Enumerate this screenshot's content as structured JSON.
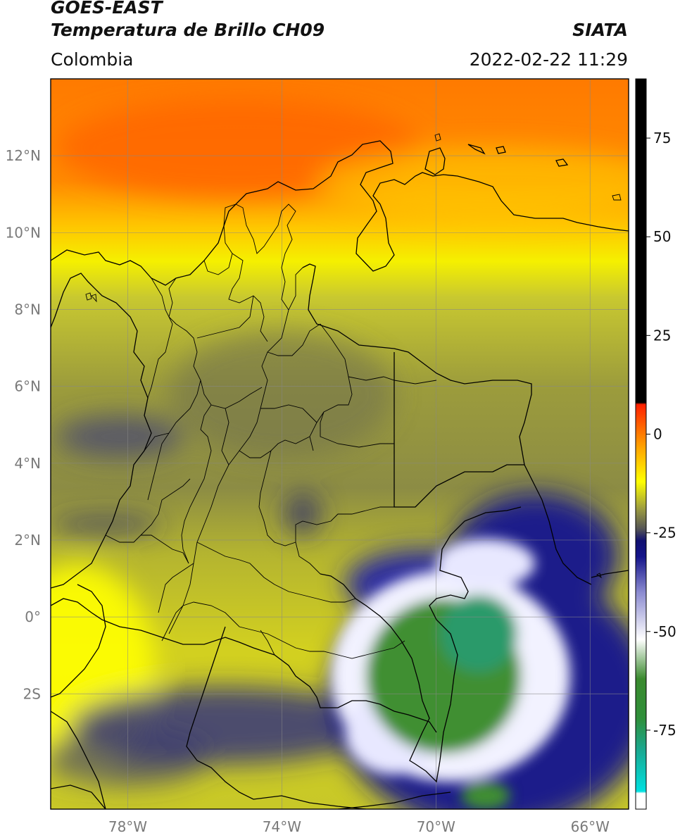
{
  "header": {
    "satellite": "GOES-EAST",
    "product": "Temperatura de Brillo CH09",
    "organization": "SIATA",
    "region": "Colombia",
    "timestamp": "2022-02-22 11:29"
  },
  "map": {
    "lon_range": [
      -80,
      -65
    ],
    "lat_range": [
      -5,
      14
    ],
    "lat_ticks": [
      {
        "value": 12,
        "label": "12°N"
      },
      {
        "value": 10,
        "label": "10°N"
      },
      {
        "value": 8,
        "label": "8°N"
      },
      {
        "value": 6,
        "label": "6°N"
      },
      {
        "value": 4,
        "label": "4°N"
      },
      {
        "value": 2,
        "label": "2°N"
      },
      {
        "value": 0,
        "label": "0°"
      },
      {
        "value": -2,
        "label": "2S"
      }
    ],
    "lon_ticks": [
      {
        "value": -78,
        "label": "78°W"
      },
      {
        "value": -74,
        "label": "74°W"
      },
      {
        "value": -70,
        "label": "70°W"
      },
      {
        "value": -66,
        "label": "66°W"
      }
    ],
    "gridlines": true,
    "colorbar": {
      "range": [
        -95,
        90
      ],
      "ticks": [
        {
          "value": 75,
          "label": "75"
        },
        {
          "value": 50,
          "label": "50"
        },
        {
          "value": 25,
          "label": "25"
        },
        {
          "value": 0,
          "label": "0"
        },
        {
          "value": -25,
          "label": "-25"
        },
        {
          "value": -50,
          "label": "-50"
        },
        {
          "value": -75,
          "label": "-75"
        }
      ],
      "stops": [
        {
          "value": -95,
          "color": "#ffffff"
        },
        {
          "value": -91,
          "color": "#ffffff"
        },
        {
          "value": -90.5,
          "color": "#00e0e0"
        },
        {
          "value": -80,
          "color": "#1aa890"
        },
        {
          "value": -72,
          "color": "#2f8f3a"
        },
        {
          "value": -62,
          "color": "#3a8a2e"
        },
        {
          "value": -52,
          "color": "#ffffff"
        },
        {
          "value": -40,
          "color": "#8a8ad0"
        },
        {
          "value": -31,
          "color": "#14148a"
        },
        {
          "value": -27,
          "color": "#101070"
        },
        {
          "value": -24,
          "color": "#555555"
        },
        {
          "value": -19,
          "color": "#9a9a40"
        },
        {
          "value": -12,
          "color": "#ffff00"
        },
        {
          "value": -3,
          "color": "#ffa000"
        },
        {
          "value": 7.5,
          "color": "#ff2000"
        },
        {
          "value": 8,
          "color": "#000000"
        },
        {
          "value": 90,
          "color": "#000000"
        }
      ]
    },
    "colors": {
      "ocean_warm": "#ff6a00",
      "high_level": "#ffff00",
      "mid_olive": "#a0a030",
      "cloud_blue": "#141484",
      "cold_green": "#3a8a2e"
    }
  }
}
